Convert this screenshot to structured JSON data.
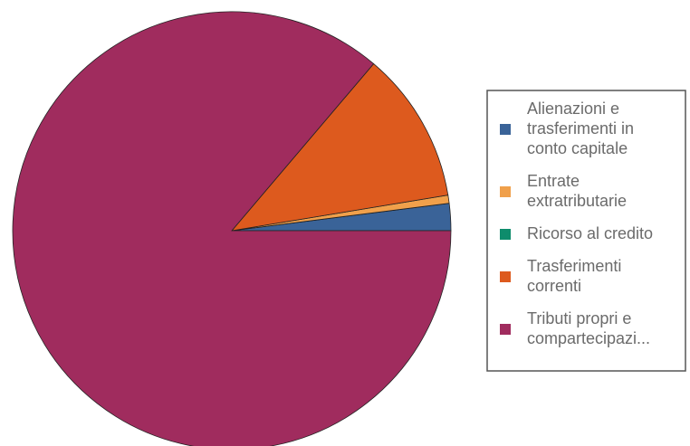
{
  "chart_data": {
    "type": "pie",
    "title": "",
    "legend_position": "right",
    "slices": [
      {
        "label": [
          "Alienazioni e",
          "trasferimenti in",
          "conto capitale"
        ],
        "value": 2.0,
        "color": "#3a6398"
      },
      {
        "label": [
          "Entrate",
          "extratributarie"
        ],
        "value": 0.6,
        "color": "#f0a04b"
      },
      {
        "label": [
          "Ricorso al credito"
        ],
        "value": 0.0,
        "color": "#0e8c6c"
      },
      {
        "label": [
          "Trasferimenti",
          "correnti"
        ],
        "value": 11.2,
        "color": "#dd5a1e"
      },
      {
        "label": [
          "Tributi propri e",
          "compartecipazi..."
        ],
        "value": 86.2,
        "color": "#a02c5e"
      }
    ]
  }
}
